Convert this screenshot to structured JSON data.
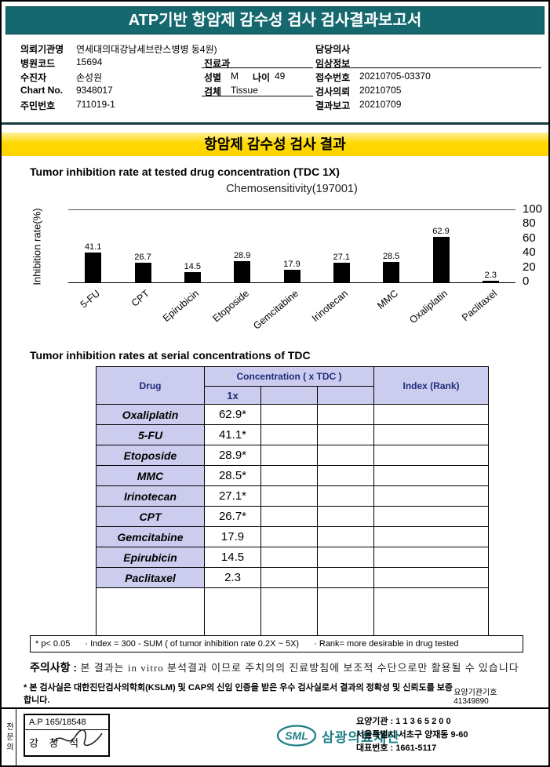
{
  "colors": {
    "banner_teal": "#15696e",
    "highlight_yellow": "#ffd900",
    "table_header_bg": "#ccccee",
    "table_header_text": "#1f2d7b",
    "bar_black": "#000000",
    "logo_teal": "#1b7f86"
  },
  "header": {
    "title": "ATP기반 항암제 감수성 검사 검사결과보고서"
  },
  "info": {
    "hospital_label": "의뢰기관명",
    "hospital_value": "연세대의대강남세브란스병병 동4원)",
    "hospital_code_label": "병원코드",
    "hospital_code_value": "15694",
    "patient_label": "수진자",
    "patient_value": "손성원",
    "chart_no_label": "Chart No.",
    "chart_no_value": "9348017",
    "resident_no_label": "주민번호",
    "resident_no_value": "711019-1",
    "department_label": "진료과",
    "department_value": "",
    "sex_label": "성별",
    "sex_value": "M",
    "age_label": "나이",
    "age_value": "49",
    "specimen_label": "검체",
    "specimen_value": "Tissue",
    "doctor_label": "담당의사",
    "doctor_value": "",
    "clinical_label": "임상정보",
    "clinical_value": "",
    "receipt_label": "접수번호",
    "receipt_value": "20210705-03370",
    "request_label": "검사의뢰",
    "request_value": "20210705",
    "report_label": "결과보고",
    "report_value": "20210709"
  },
  "result_section": {
    "title": "항암제 감수성 검사 결과",
    "chart_heading": "Tumor inhibition rate at tested drug concentration (TDC 1X)"
  },
  "chart_data": {
    "type": "bar",
    "title": "Chemosensitivity(197001)",
    "ylabel": "Inhibition rate(%)",
    "categories": [
      "5-FU",
      "CPT",
      "Epirubicin",
      "Etoposide",
      "Gemcitabine",
      "Irinotecan",
      "MMC",
      "Oxaliplatin",
      "Paclitaxel"
    ],
    "values": [
      41.1,
      26.7,
      14.5,
      28.9,
      17.9,
      27.1,
      28.5,
      62.9,
      2.3
    ],
    "ylim": [
      0,
      100
    ],
    "yticks": [
      100,
      80,
      60,
      40,
      20,
      0
    ],
    "grid": false,
    "bar_color": "#000000",
    "ytick_side": "right"
  },
  "table": {
    "heading": "Tumor inhibition rates at serial concentrations of TDC",
    "headers": {
      "drug": "Drug",
      "concentration": "Concentration ( x TDC )",
      "sub": "1x",
      "index": "Index (Rank)"
    },
    "rows": [
      {
        "drug": "Oxaliplatin",
        "value": "62.9*"
      },
      {
        "drug": "5-FU",
        "value": "41.1*"
      },
      {
        "drug": "Etoposide",
        "value": "28.9*"
      },
      {
        "drug": "MMC",
        "value": "28.5*"
      },
      {
        "drug": "Irinotecan",
        "value": "27.1*"
      },
      {
        "drug": "CPT",
        "value": "26.7*"
      },
      {
        "drug": "Gemcitabine",
        "value": "17.9"
      },
      {
        "drug": "Epirubicin",
        "value": "14.5"
      },
      {
        "drug": "Paclitaxel",
        "value": "2.3"
      }
    ],
    "footnote": {
      "significance": "* p< 0.05",
      "index_def": "· Index = 300 - SUM ( of tumor inhibition rate 0.2X ~ 5X)",
      "rank_def": "· Rank= more desirable in drug tested"
    }
  },
  "caution": {
    "label": "주의사항 :",
    "text": "본 결과는 in vitro 분석결과 이므로 주치의의 진료방침에 보조적 수단으로만 활용될 수 있습니다"
  },
  "certification": {
    "text": "* 본 검사실은 대한진단검사의학회(KSLM) 및 CAP의 신임 인증을 받은 우수 검사실로서 결과의 정확성 및 신뢰도를 보증합니다.",
    "code": "요양기관기호 41349890"
  },
  "footer": {
    "side_label": "전문의",
    "stamp": {
      "license": "A.P 165/18548",
      "name": "강 창 석"
    },
    "logo": {
      "mark": "SML",
      "org_name": "삼광의료재단"
    },
    "contact": {
      "org_no": "요양기관 : 1 1 3 6 5 2 0 0",
      "address": "서울특별시 서초구 양재동 9-60",
      "phone": "대표번호 : 1661-5117"
    }
  }
}
